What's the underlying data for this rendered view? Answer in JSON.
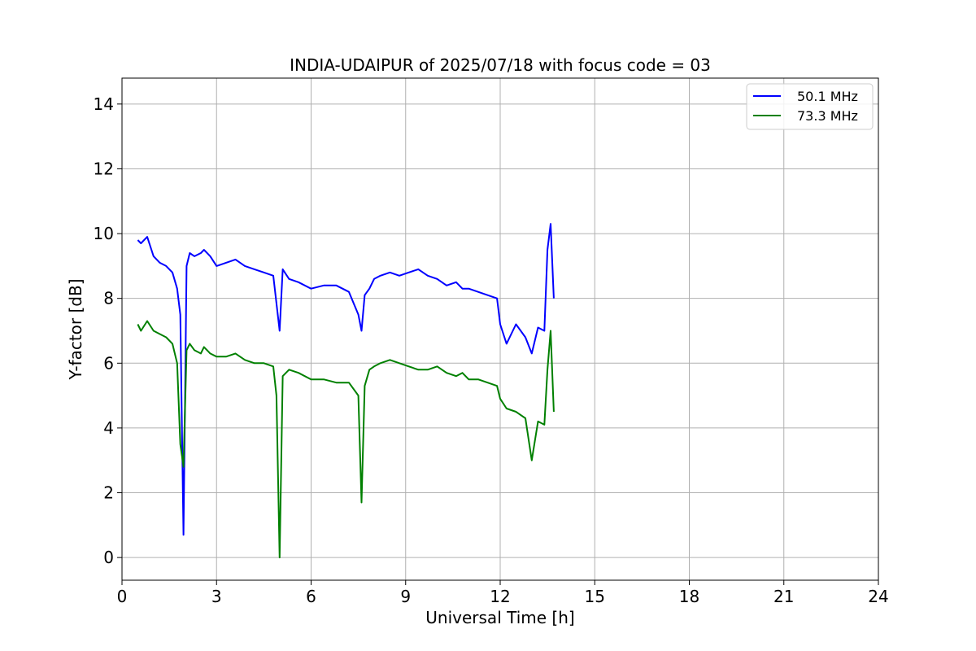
{
  "chart_data": {
    "type": "line",
    "title": "INDIA-UDAIPUR of 2025/07/18 with focus code = 03",
    "xlabel": "Universal Time [h]",
    "ylabel": "Y-factor [dB]",
    "xlim": [
      0,
      24
    ],
    "ylim": [
      -0.7,
      14.8
    ],
    "xticks": [
      0,
      3,
      6,
      9,
      12,
      15,
      18,
      21,
      24
    ],
    "xtick_labels": [
      "0",
      "3",
      "6",
      "9",
      "12",
      "15",
      "18",
      "21",
      "24"
    ],
    "yticks": [
      0,
      2,
      4,
      6,
      8,
      10,
      12,
      14
    ],
    "ytick_labels": [
      "0",
      "2",
      "4",
      "6",
      "8",
      "10",
      "12",
      "14"
    ],
    "grid": true,
    "legend_position": "top-right",
    "series": [
      {
        "name": "50.1 MHz",
        "color": "#0000ff",
        "x": [
          0.5,
          0.6,
          0.8,
          1.0,
          1.2,
          1.4,
          1.6,
          1.75,
          1.85,
          1.95,
          2.05,
          2.15,
          2.3,
          2.5,
          2.6,
          2.8,
          3.0,
          3.3,
          3.6,
          3.9,
          4.2,
          4.5,
          4.8,
          5.0,
          5.1,
          5.3,
          5.6,
          6.0,
          6.4,
          6.8,
          7.2,
          7.5,
          7.6,
          7.7,
          7.85,
          8.0,
          8.2,
          8.5,
          8.8,
          9.1,
          9.4,
          9.7,
          10.0,
          10.3,
          10.6,
          10.8,
          11.0,
          11.3,
          11.6,
          11.9,
          12.0,
          12.2,
          12.5,
          12.8,
          13.0,
          13.2,
          13.4,
          13.5,
          13.6,
          13.7
        ],
        "y": [
          9.8,
          9.7,
          9.9,
          9.3,
          9.1,
          9.0,
          8.8,
          8.3,
          7.5,
          0.7,
          9.0,
          9.4,
          9.3,
          9.4,
          9.5,
          9.3,
          9.0,
          9.1,
          9.2,
          9.0,
          8.9,
          8.8,
          8.7,
          7.0,
          8.9,
          8.6,
          8.5,
          8.3,
          8.4,
          8.4,
          8.2,
          7.5,
          7.0,
          8.1,
          8.3,
          8.6,
          8.7,
          8.8,
          8.7,
          8.8,
          8.9,
          8.7,
          8.6,
          8.4,
          8.5,
          8.3,
          8.3,
          8.2,
          8.1,
          8.0,
          7.2,
          6.6,
          7.2,
          6.8,
          6.3,
          7.1,
          7.0,
          9.5,
          10.3,
          8.0
        ]
      },
      {
        "name": "73.3 MHz",
        "color": "#008000",
        "x": [
          0.5,
          0.6,
          0.8,
          1.0,
          1.2,
          1.4,
          1.6,
          1.75,
          1.85,
          1.95,
          2.05,
          2.15,
          2.3,
          2.5,
          2.6,
          2.8,
          3.0,
          3.3,
          3.6,
          3.9,
          4.2,
          4.5,
          4.8,
          4.9,
          5.0,
          5.1,
          5.3,
          5.6,
          6.0,
          6.4,
          6.8,
          7.2,
          7.5,
          7.6,
          7.7,
          7.85,
          8.0,
          8.2,
          8.5,
          8.8,
          9.1,
          9.4,
          9.7,
          10.0,
          10.3,
          10.6,
          10.8,
          11.0,
          11.3,
          11.6,
          11.9,
          12.0,
          12.2,
          12.5,
          12.8,
          13.0,
          13.2,
          13.4,
          13.5,
          13.6,
          13.7
        ],
        "y": [
          7.2,
          7.0,
          7.3,
          7.0,
          6.9,
          6.8,
          6.6,
          6.0,
          3.5,
          2.8,
          6.4,
          6.6,
          6.4,
          6.3,
          6.5,
          6.3,
          6.2,
          6.2,
          6.3,
          6.1,
          6.0,
          6.0,
          5.9,
          5.0,
          0.0,
          5.6,
          5.8,
          5.7,
          5.5,
          5.5,
          5.4,
          5.4,
          5.0,
          1.7,
          5.3,
          5.8,
          5.9,
          6.0,
          6.1,
          6.0,
          5.9,
          5.8,
          5.8,
          5.9,
          5.7,
          5.6,
          5.7,
          5.5,
          5.5,
          5.4,
          5.3,
          4.9,
          4.6,
          4.5,
          4.3,
          3.0,
          4.2,
          4.1,
          5.8,
          7.0,
          4.5
        ]
      }
    ]
  }
}
